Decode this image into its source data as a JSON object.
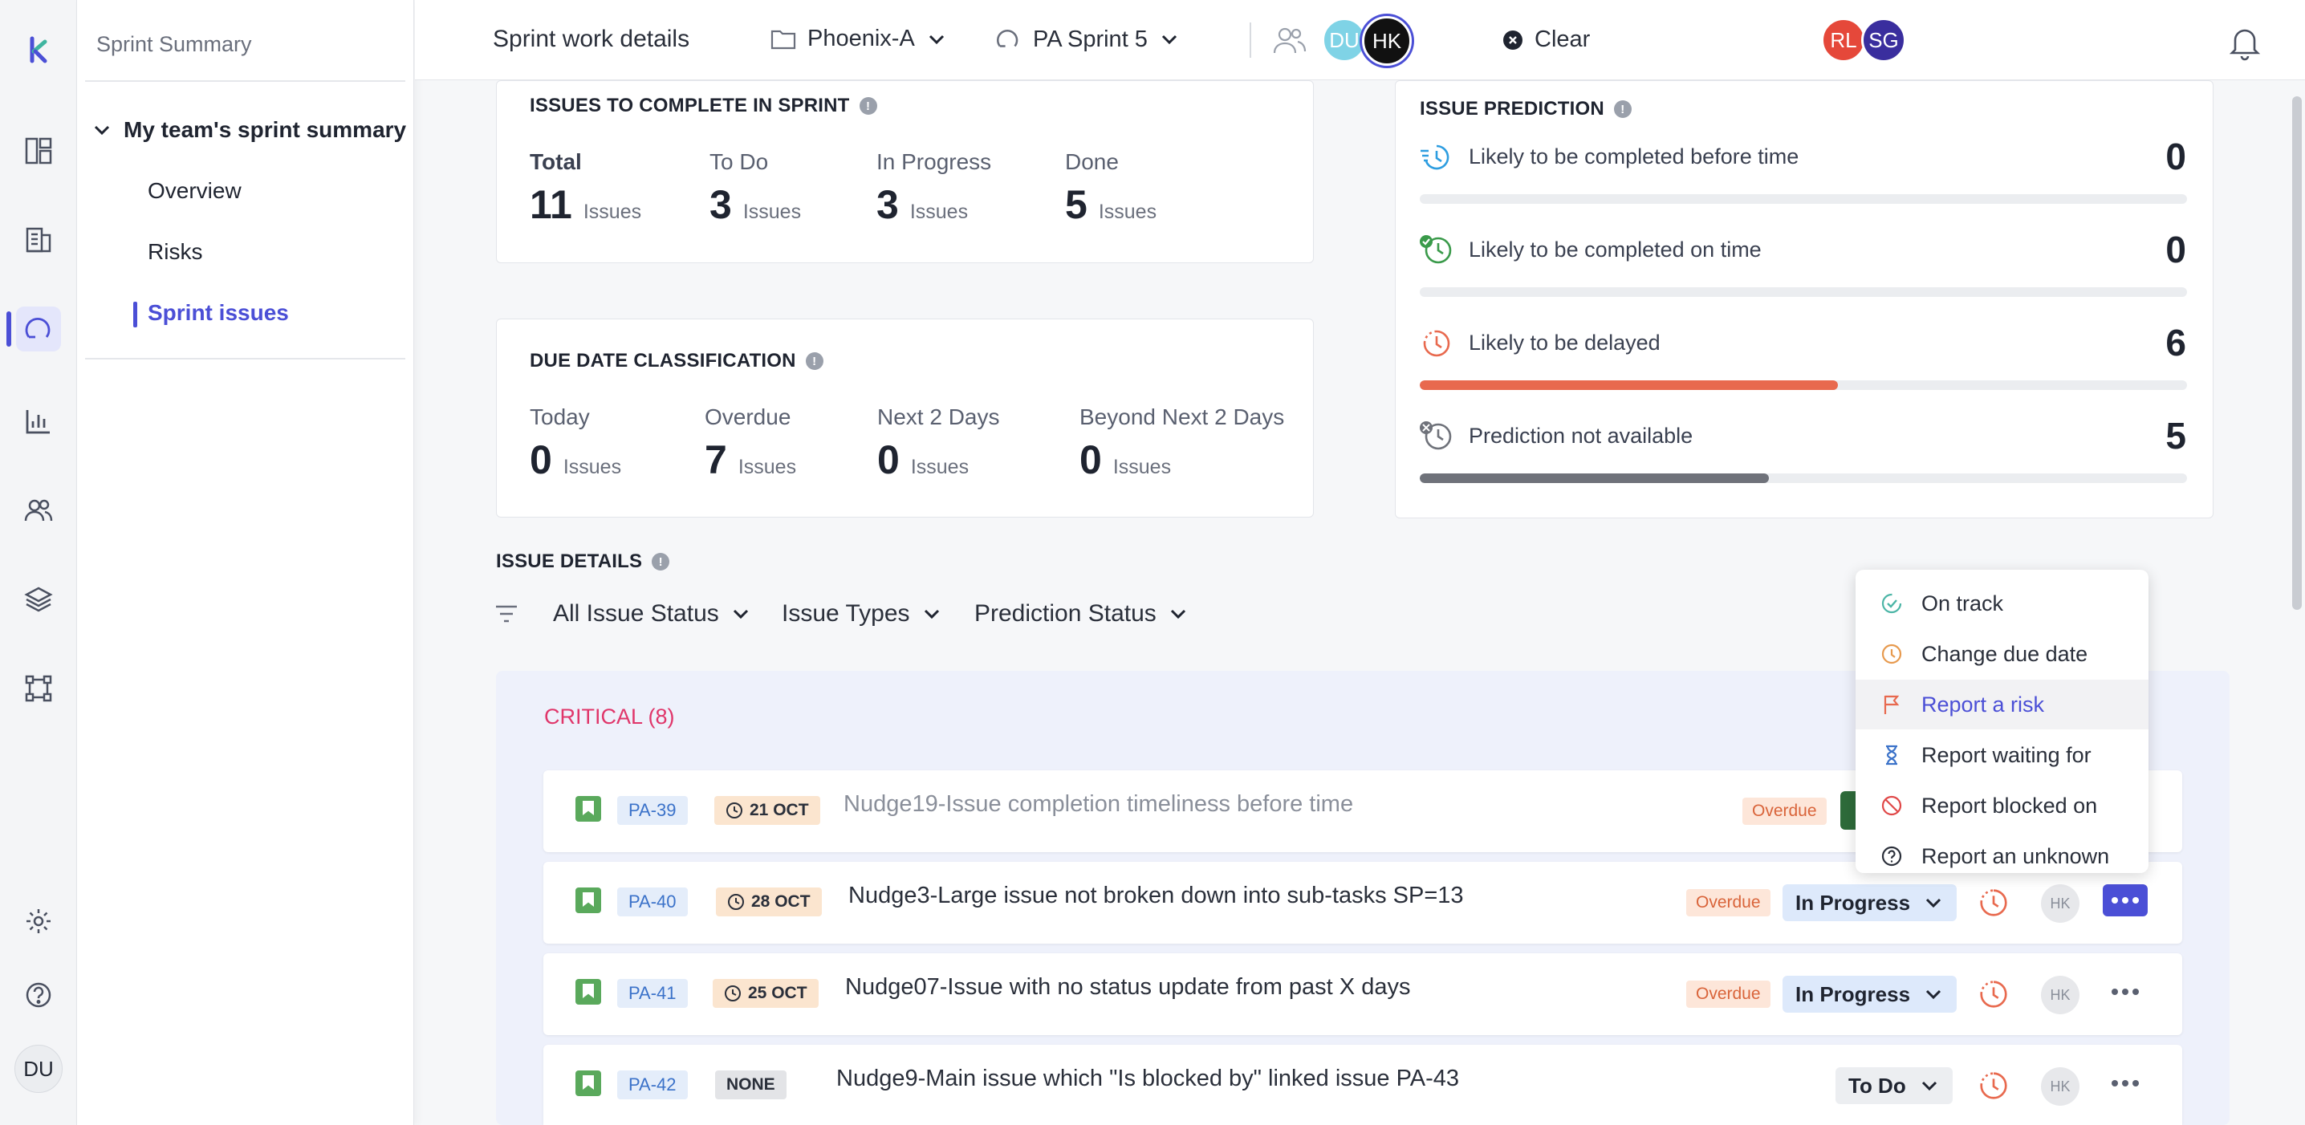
{
  "sidebar": {
    "title": "Sprint Summary",
    "group": "My team's sprint summary",
    "items": [
      "Overview",
      "Risks",
      "Sprint issues"
    ],
    "user_initials": "DU"
  },
  "topbar": {
    "title": "Sprint work details",
    "project": "Phoenix-A",
    "sprint": "PA Sprint 5",
    "avatars": [
      {
        "initials": "DU",
        "color": "#7fd3e6"
      },
      {
        "initials": "HK",
        "color": "#111111"
      },
      {
        "initials": "RL",
        "color": "#e5483a"
      },
      {
        "initials": "SG",
        "color": "#3a2e9e"
      }
    ],
    "clear": "Clear"
  },
  "complete": {
    "title": "ISSUES TO COMPLETE IN SPRINT",
    "unit": "Issues",
    "stats": [
      {
        "label": "Total",
        "value": "11"
      },
      {
        "label": "To Do",
        "value": "3"
      },
      {
        "label": "In Progress",
        "value": "3"
      },
      {
        "label": "Done",
        "value": "5"
      }
    ]
  },
  "due": {
    "title": "DUE DATE CLASSIFICATION",
    "unit": "Issues",
    "stats": [
      {
        "label": "Today",
        "value": "0"
      },
      {
        "label": "Overdue",
        "value": "7"
      },
      {
        "label": "Next 2 Days",
        "value": "0"
      },
      {
        "label": "Beyond Next 2 Days",
        "value": "0"
      }
    ]
  },
  "prediction": {
    "title": "ISSUE PREDICTION",
    "rows": [
      {
        "label": "Likely to be completed before time",
        "value": "0",
        "fraction": 0,
        "color": "#2d9de0"
      },
      {
        "label": "Likely to be completed on time",
        "value": "0",
        "fraction": 0,
        "color": "#3a9a4a"
      },
      {
        "label": "Likely to be delayed",
        "value": "6",
        "fraction": 0.545,
        "color": "#e8694e"
      },
      {
        "label": "Prediction not available",
        "value": "5",
        "fraction": 0.455,
        "color": "#6f727a"
      }
    ]
  },
  "details": {
    "title": "ISSUE DETAILS",
    "filters": [
      "All Issue Status",
      "Issue Types",
      "Prediction Status"
    ],
    "group_label": "CRITICAL (8)"
  },
  "issues": [
    {
      "key": "PA-39",
      "due": "21 OCT",
      "title": "Nudge19-Issue completion timeliness before time",
      "badge": "Overdue",
      "status": ""
    },
    {
      "key": "PA-40",
      "due": "28 OCT",
      "title": "Nudge3-Large issue not broken down into sub-tasks SP=13",
      "badge": "Overdue",
      "status": "In Progress",
      "assignee": "HK"
    },
    {
      "key": "PA-41",
      "due": "25 OCT",
      "title": "Nudge07-Issue with no status update from past X days",
      "badge": "Overdue",
      "status": "In Progress",
      "assignee": "HK"
    },
    {
      "key": "PA-42",
      "due": "NONE",
      "title": "Nudge9-Main issue which \"Is blocked by\" linked issue PA-43",
      "badge": "",
      "status": "To Do",
      "assignee": "HK"
    }
  ],
  "menu": {
    "items": [
      {
        "label": "On track",
        "icon": "check-circle-icon"
      },
      {
        "label": "Change due date",
        "icon": "clock-icon"
      },
      {
        "label": "Report a risk",
        "icon": "flag-icon"
      },
      {
        "label": "Report waiting for",
        "icon": "hourglass-icon"
      },
      {
        "label": "Report blocked on",
        "icon": "blocked-icon"
      },
      {
        "label": "Report an unknown",
        "icon": "question-icon"
      }
    ]
  }
}
